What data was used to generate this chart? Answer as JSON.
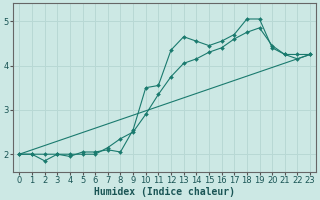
{
  "xlabel": "Humidex (Indice chaleur)",
  "bg_color": "#cce8e4",
  "grid_color": "#b8d8d4",
  "line_color": "#1a7a6e",
  "xlim": [
    -0.5,
    23.5
  ],
  "ylim": [
    1.6,
    5.4
  ],
  "yticks": [
    2,
    3,
    4,
    5
  ],
  "xticks": [
    0,
    1,
    2,
    3,
    4,
    5,
    6,
    7,
    8,
    9,
    10,
    11,
    12,
    13,
    14,
    15,
    16,
    17,
    18,
    19,
    20,
    21,
    22,
    23
  ],
  "line1_x": [
    0,
    1,
    2,
    3,
    4,
    5,
    6,
    7,
    8,
    9,
    10,
    11,
    12,
    13,
    14,
    15,
    16,
    17,
    18,
    19,
    20,
    21,
    22,
    23
  ],
  "line1_y": [
    2.0,
    2.0,
    1.85,
    2.0,
    1.95,
    2.05,
    2.05,
    2.1,
    2.05,
    2.55,
    3.5,
    3.55,
    4.35,
    4.65,
    4.55,
    4.45,
    4.55,
    4.7,
    5.05,
    5.05,
    4.4,
    4.25,
    4.15,
    4.25
  ],
  "line2_x": [
    0,
    1,
    2,
    3,
    4,
    5,
    6,
    7,
    8,
    9,
    10,
    11,
    12,
    13,
    14,
    15,
    16,
    17,
    18,
    19,
    20,
    21,
    22,
    23
  ],
  "line2_y": [
    2.0,
    2.0,
    2.0,
    2.0,
    2.0,
    2.0,
    2.0,
    2.15,
    2.35,
    2.5,
    2.9,
    3.35,
    3.75,
    4.05,
    4.15,
    4.3,
    4.4,
    4.6,
    4.75,
    4.85,
    4.45,
    4.25,
    4.25,
    4.25
  ],
  "line3_x": [
    0,
    23
  ],
  "line3_y": [
    2.0,
    4.25
  ],
  "tick_fontsize": 6,
  "xlabel_fontsize": 7
}
